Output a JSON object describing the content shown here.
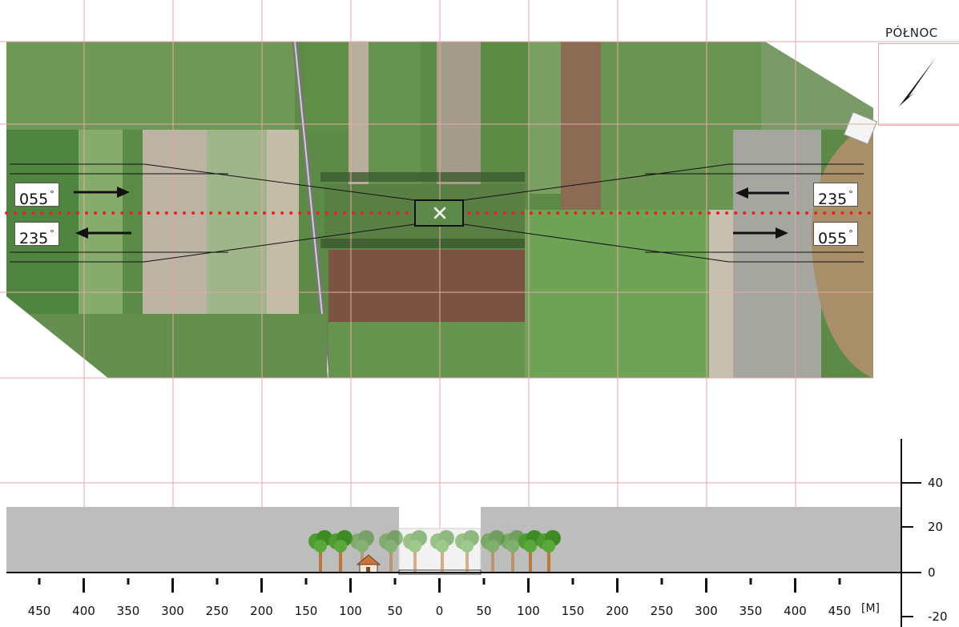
{
  "north": {
    "label": "PÓŁNOC",
    "icon": "north-arrow-icon"
  },
  "runway_labels": {
    "left_top": "055",
    "left_bottom": "235",
    "right_top": "235",
    "right_bottom": "055",
    "degree": "°"
  },
  "profile": {
    "x_ticks": [
      "450",
      "400",
      "350",
      "300",
      "250",
      "200",
      "150",
      "100",
      "50",
      "0",
      "50",
      "100",
      "150",
      "200",
      "250",
      "300",
      "350",
      "400",
      "450"
    ],
    "x_unit": "[M]",
    "y_ticks": [
      "40",
      "20",
      "0",
      "-20"
    ]
  },
  "colors": {
    "grid": "#e8a7a7",
    "dotted_centerline": "#e8231f",
    "profile_fill": "#bdbdbd",
    "field_green": "#5f8f4a"
  }
}
